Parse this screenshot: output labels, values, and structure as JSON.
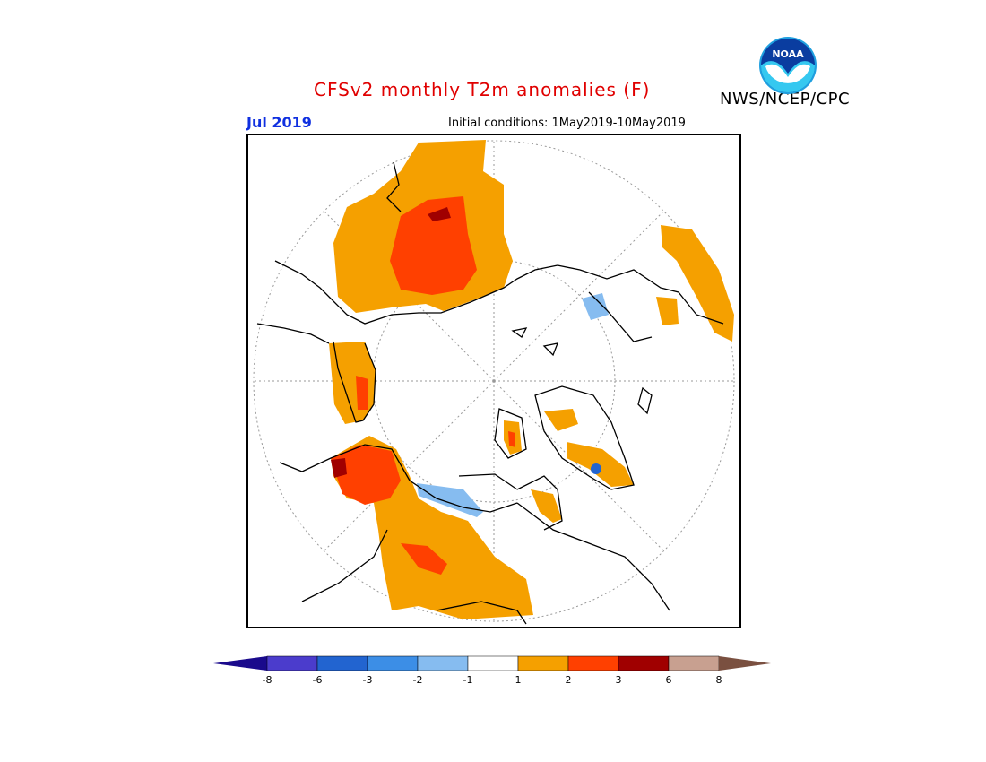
{
  "header": {
    "title": "CFSv2 monthly T2m anomalies (F)",
    "agency": "NWS/NCEP/CPC",
    "month": "Jul 2019",
    "initial_conditions": "Initial conditions: 1May2019-10May2019",
    "logo_text": "NOAA"
  },
  "legend": {
    "labels": [
      "-8",
      "-6",
      "-3",
      "-2",
      "-1",
      "1",
      "2",
      "3",
      "6",
      "8"
    ],
    "colors": [
      "#1a0a8c",
      "#4b3ccc",
      "#2264d0",
      "#3c8ee6",
      "#86bcf0",
      "#ffffff",
      "#f5a000",
      "#ff4000",
      "#a00000",
      "#c8a090",
      "#7a5040"
    ]
  },
  "map": {
    "projection": "north-polar-stereographic",
    "anomaly_colors": {
      "warm1": "#f5a000",
      "warm2": "#ff4000",
      "warm3": "#a00000",
      "cool1": "#86bcf0",
      "cool2": "#2264d0"
    }
  }
}
